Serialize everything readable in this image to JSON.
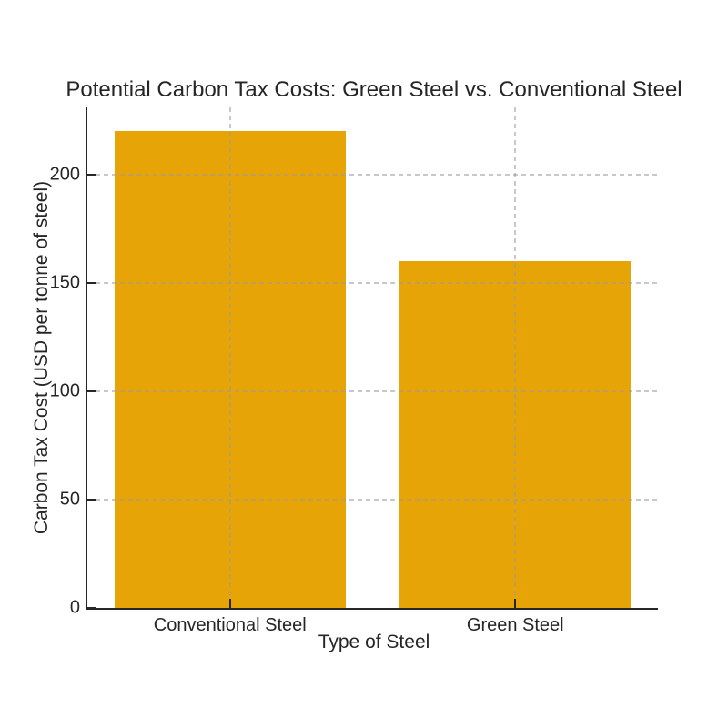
{
  "chart_data": {
    "type": "bar",
    "title": "Potential Carbon Tax Costs: Green Steel vs. Conventional Steel",
    "categories": [
      "Conventional Steel",
      "Green Steel"
    ],
    "values": [
      220,
      160
    ],
    "xlabel": "Type of Steel",
    "ylabel": "Carbon Tax Cost (USD per tonne of steel)",
    "ylim": [
      0,
      231
    ],
    "yticks": [
      0,
      50,
      100,
      150,
      200
    ],
    "grid": "dashed gridlines at y-ticks and category centers, drawn over bars",
    "legend_position": "none",
    "tick_direction": "in"
  },
  "colors": {
    "bar": "#E6A407",
    "axis": "#262626",
    "text": "#262626",
    "grid": "#9b9b9b",
    "background": "#ffffff"
  }
}
